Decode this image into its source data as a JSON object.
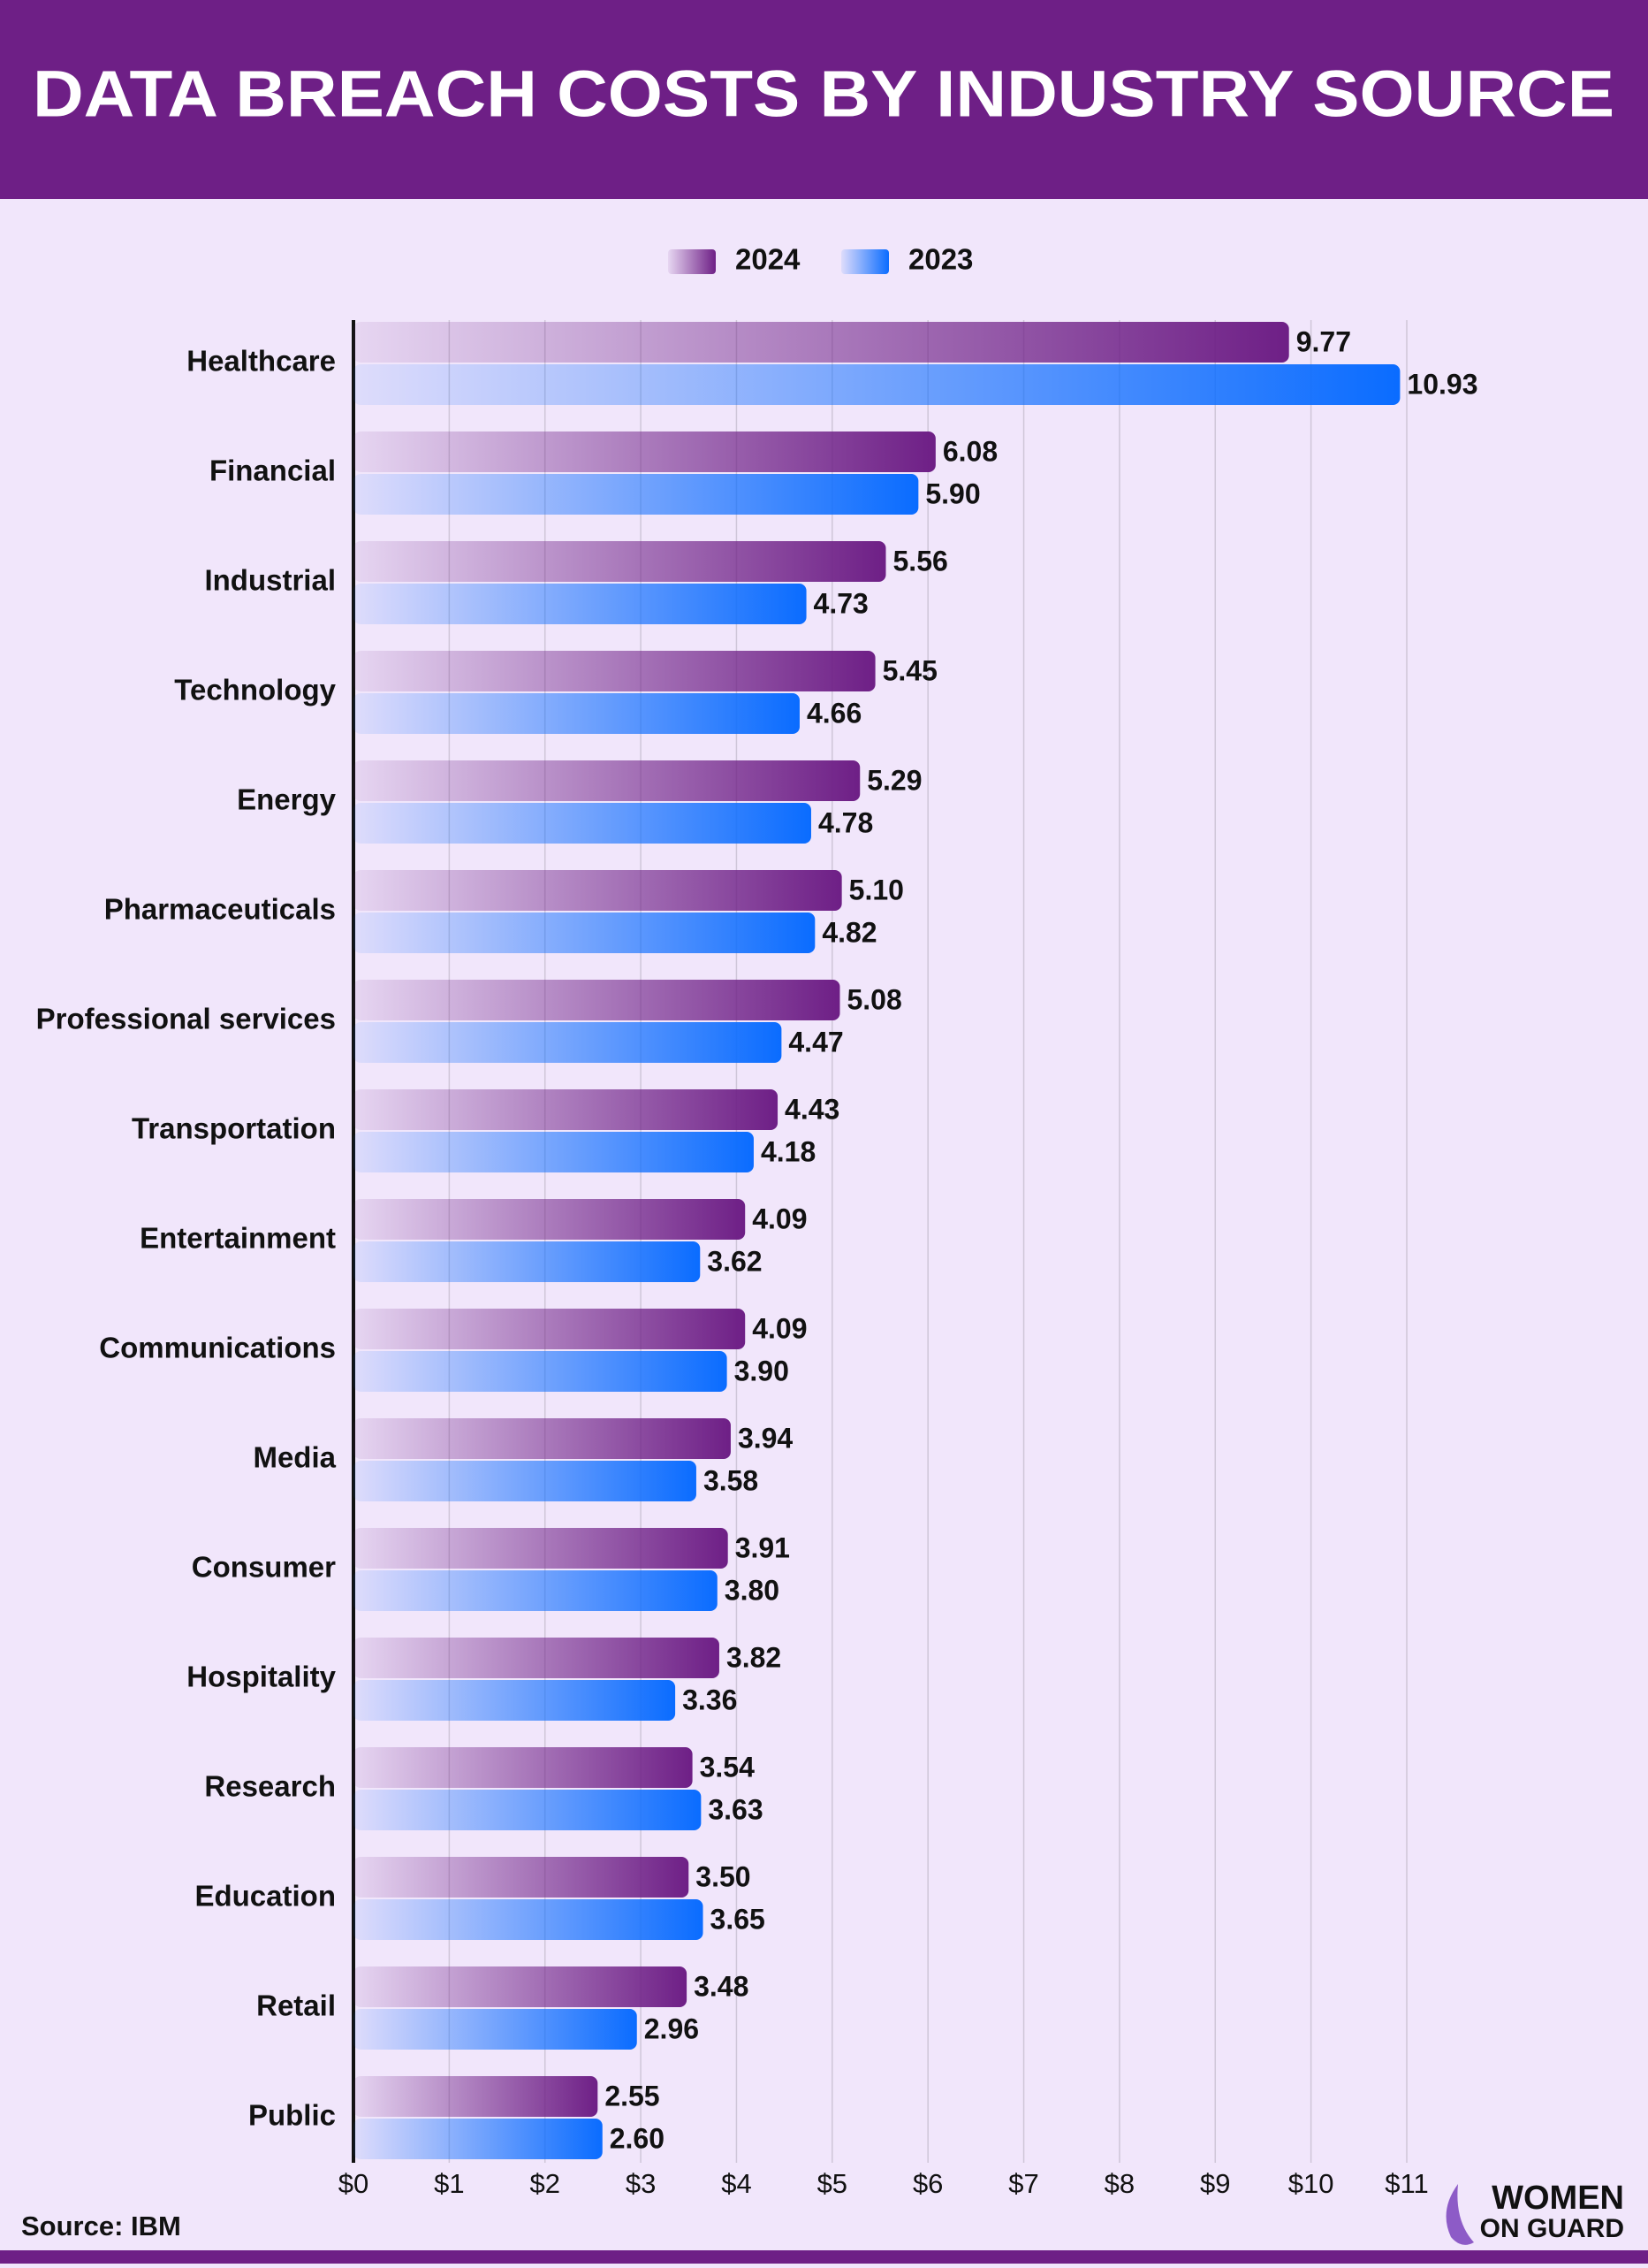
{
  "chart_data": {
    "type": "hbar",
    "title": "DATA BREACH COSTS BY INDUSTRY SOURCE",
    "categories": [
      "Healthcare",
      "Financial",
      "Industrial",
      "Technology",
      "Energy",
      "Pharmaceuticals",
      "Professional services",
      "Transportation",
      "Entertainment",
      "Communications",
      "Media",
      "Consumer",
      "Hospitality",
      "Research",
      "Education",
      "Retail",
      "Public"
    ],
    "series": [
      {
        "name": "2024",
        "color": "#6e1f86",
        "values": [
          9.77,
          6.08,
          5.56,
          5.45,
          5.29,
          5.1,
          5.08,
          4.43,
          4.09,
          4.09,
          3.94,
          3.91,
          3.82,
          3.54,
          3.5,
          3.48,
          2.55
        ],
        "value_labels": [
          "9.77",
          "6.08",
          "5.56",
          "5.45",
          "5.29",
          "5.10",
          "5.08",
          "4.43",
          "4.09",
          "4.09",
          "3.94",
          "3.91",
          "3.82",
          "3.54",
          "3.50",
          "3.48",
          "2.55"
        ]
      },
      {
        "name": "2023",
        "color": "#0a6cff",
        "values": [
          10.93,
          5.9,
          4.73,
          4.66,
          4.78,
          4.82,
          4.47,
          4.18,
          3.62,
          3.9,
          3.58,
          3.8,
          3.36,
          3.63,
          3.65,
          2.96,
          2.6
        ],
        "value_labels": [
          "10.93",
          "5.90",
          "4.73",
          "4.66",
          "4.78",
          "4.82",
          "4.47",
          "4.18",
          "3.62",
          "3.90",
          "3.58",
          "3.80",
          "3.36",
          "3.63",
          "3.65",
          "2.96",
          "2.60"
        ]
      }
    ],
    "xlim": [
      0,
      11
    ],
    "xticks": [
      {
        "value": 0,
        "label": "$0"
      },
      {
        "value": 1,
        "label": "$1"
      },
      {
        "value": 2,
        "label": "$2"
      },
      {
        "value": 3,
        "label": "$3"
      },
      {
        "value": 4,
        "label": "$4"
      },
      {
        "value": 5,
        "label": "$5"
      },
      {
        "value": 6,
        "label": "$6"
      },
      {
        "value": 7,
        "label": "$7"
      },
      {
        "value": 8,
        "label": "$8"
      },
      {
        "value": 9,
        "label": "$9"
      },
      {
        "value": 10,
        "label": "$10"
      },
      {
        "value": 11,
        "label": "$11"
      }
    ],
    "grid": true,
    "source": "Source: IBM"
  },
  "logo": {
    "line1": "WOMEN",
    "line2": "ON GUARD"
  }
}
